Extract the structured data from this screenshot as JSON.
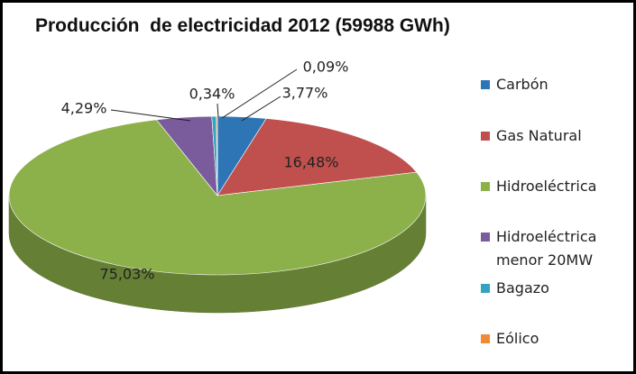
{
  "chart_data": {
    "type": "pie3d",
    "title": "Producción  de electricidad 2012 (59988 GWh)",
    "categories": [
      "Carbón",
      "Gas Natural",
      "Hidroeléctrica",
      "Hidroeléctrica menor 20MW",
      "Bagazo",
      "Eólico"
    ],
    "values": [
      3.77,
      16.48,
      75.03,
      4.29,
      0.34,
      0.09
    ],
    "value_labels": [
      "3,77%",
      "16,48%",
      "75,03%",
      "4,29%",
      "0,34%",
      "0,09%"
    ],
    "colors": [
      "#2e75b6",
      "#c0504d",
      "#8cb04a",
      "#7a5b9c",
      "#33a3bf",
      "#f08a36"
    ],
    "legend": "right"
  }
}
